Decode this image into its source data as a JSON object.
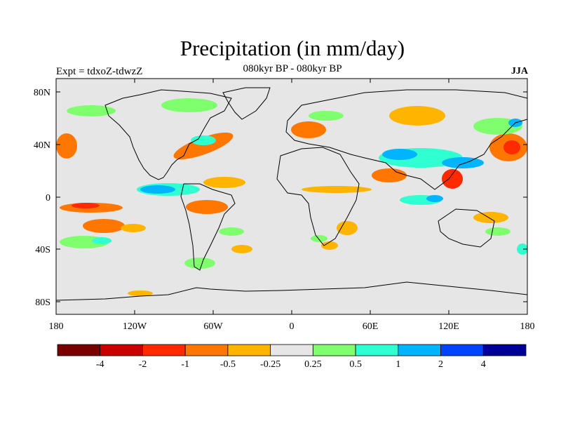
{
  "header": {
    "title": "Precipitation (in mm/day)",
    "subtitle": "080kyr BP - 080kyr BP",
    "experiment": "Expt = tdxoZ-tdwzZ",
    "season": "JJA"
  },
  "map": {
    "background_color": "#e6e6e6",
    "lat_ticks": [
      "80N",
      "40N",
      "0",
      "40S",
      "80S"
    ],
    "lon_ticks": [
      "180",
      "120W",
      "60W",
      "0",
      "60E",
      "120E",
      "180"
    ]
  },
  "colorbar": {
    "colors": [
      "#7a0000",
      "#c80000",
      "#ff2a00",
      "#ff7700",
      "#ffb400",
      "#e6e6e6",
      "#80ff6e",
      "#30ffd2",
      "#00b4ff",
      "#0044ff",
      "#000096"
    ],
    "labels": [
      "-4",
      "-2",
      "-1",
      "-0.5",
      "-0.25",
      "0.25",
      "0.5",
      "1",
      "2",
      "4"
    ]
  }
}
